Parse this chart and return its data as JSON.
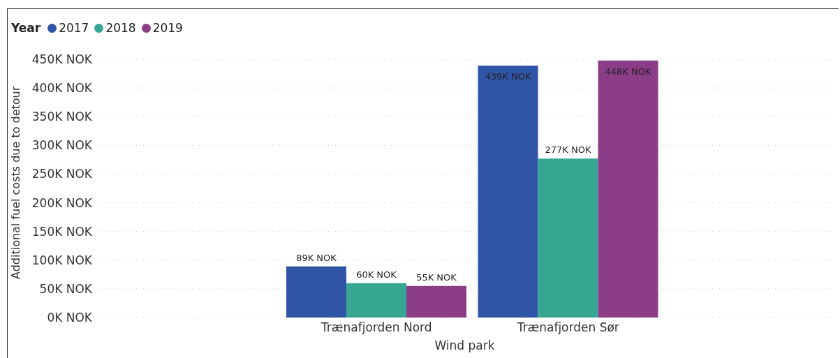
{
  "chart_data": {
    "type": "bar",
    "xlabel": "Wind park",
    "ylabel": "Additional fuel costs due to detour",
    "legend_title": "Year",
    "categories": [
      "Trænafjorden Nord",
      "Trænafjorden Sør"
    ],
    "series": [
      {
        "name": "2017",
        "color": "#3155a6",
        "values": [
          89,
          439
        ],
        "value_labels": [
          "89K NOK",
          "439K NOK"
        ]
      },
      {
        "name": "2018",
        "color": "#37a794",
        "values": [
          60,
          277
        ],
        "value_labels": [
          "60K NOK",
          "277K NOK"
        ]
      },
      {
        "name": "2019",
        "color": "#8b3d88",
        "values": [
          55,
          448
        ],
        "value_labels": [
          "55K NOK",
          "448K NOK"
        ]
      }
    ],
    "ylim": [
      0,
      450
    ],
    "yticks": [
      {
        "value": 0,
        "label": "0K NOK"
      },
      {
        "value": 50,
        "label": "50K NOK"
      },
      {
        "value": 100,
        "label": "100K NOK"
      },
      {
        "value": 150,
        "label": "150K NOK"
      },
      {
        "value": 200,
        "label": "200K NOK"
      },
      {
        "value": 250,
        "label": "250K NOK"
      },
      {
        "value": 300,
        "label": "300K NOK"
      },
      {
        "value": 350,
        "label": "350K NOK"
      },
      {
        "value": 400,
        "label": "400K NOK"
      },
      {
        "value": 450,
        "label": "450K NOK"
      }
    ],
    "grid": "y",
    "legend": "top left"
  }
}
